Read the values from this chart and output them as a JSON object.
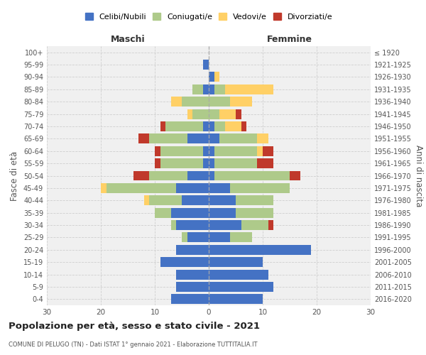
{
  "age_groups": [
    "0-4",
    "5-9",
    "10-14",
    "15-19",
    "20-24",
    "25-29",
    "30-34",
    "35-39",
    "40-44",
    "45-49",
    "50-54",
    "55-59",
    "60-64",
    "65-69",
    "70-74",
    "75-79",
    "80-84",
    "85-89",
    "90-94",
    "95-99",
    "100+"
  ],
  "birth_years": [
    "2016-2020",
    "2011-2015",
    "2006-2010",
    "2001-2005",
    "1996-2000",
    "1991-1995",
    "1986-1990",
    "1981-1985",
    "1976-1980",
    "1971-1975",
    "1966-1970",
    "1961-1965",
    "1956-1960",
    "1951-1955",
    "1946-1950",
    "1941-1945",
    "1936-1940",
    "1931-1935",
    "1926-1930",
    "1921-1925",
    "≤ 1920"
  ],
  "male": {
    "celibe": [
      7,
      6,
      6,
      9,
      6,
      4,
      6,
      7,
      5,
      6,
      4,
      1,
      1,
      4,
      1,
      0,
      0,
      1,
      0,
      1,
      0
    ],
    "coniugato": [
      0,
      0,
      0,
      0,
      0,
      1,
      1,
      3,
      6,
      13,
      7,
      8,
      8,
      7,
      7,
      3,
      5,
      2,
      0,
      0,
      0
    ],
    "vedovo": [
      0,
      0,
      0,
      0,
      0,
      0,
      0,
      0,
      1,
      1,
      0,
      0,
      0,
      0,
      0,
      1,
      2,
      0,
      0,
      0,
      0
    ],
    "divorziato": [
      0,
      0,
      0,
      0,
      0,
      0,
      0,
      0,
      0,
      0,
      3,
      1,
      1,
      2,
      1,
      0,
      0,
      0,
      0,
      0,
      0
    ]
  },
  "female": {
    "nubile": [
      10,
      12,
      11,
      10,
      19,
      4,
      6,
      5,
      5,
      4,
      1,
      1,
      1,
      2,
      1,
      0,
      0,
      1,
      1,
      0,
      0
    ],
    "coniugata": [
      0,
      0,
      0,
      0,
      0,
      4,
      5,
      7,
      7,
      11,
      14,
      8,
      8,
      7,
      2,
      2,
      4,
      2,
      0,
      0,
      0
    ],
    "vedova": [
      0,
      0,
      0,
      0,
      0,
      0,
      0,
      0,
      0,
      0,
      0,
      0,
      1,
      2,
      3,
      3,
      4,
      9,
      1,
      0,
      0
    ],
    "divorziata": [
      0,
      0,
      0,
      0,
      0,
      0,
      1,
      0,
      0,
      0,
      2,
      3,
      2,
      0,
      1,
      1,
      0,
      0,
      0,
      0,
      0
    ]
  },
  "colors": {
    "celibe": "#4472C4",
    "coniugato": "#AECA8A",
    "vedovo": "#FFD066",
    "divorziato": "#C0392B"
  },
  "xlim": 30,
  "title": "Popolazione per età, sesso e stato civile - 2021",
  "subtitle": "COMUNE DI PELUGO (TN) - Dati ISTAT 1° gennaio 2021 - Elaborazione TUTTITALIA.IT",
  "ylabel_left": "Fasce di età",
  "ylabel_right": "Anni di nascita",
  "xlabel_left": "Maschi",
  "xlabel_right": "Femmine",
  "bg_color": "#f0f0f0",
  "grid_color": "#cccccc"
}
